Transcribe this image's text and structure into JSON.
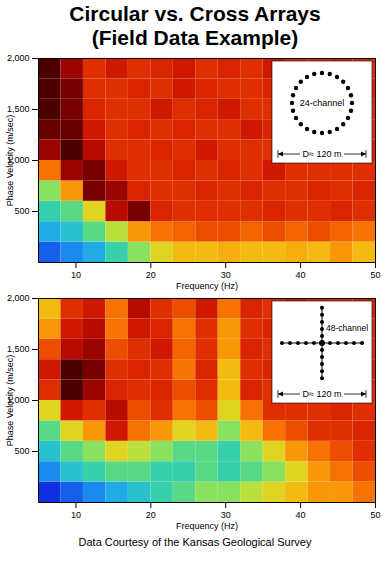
{
  "title": "Circular vs. Cross Arrays",
  "subtitle": "(Field Data Example)",
  "caption": "Data Courtesy of the Kansas Geological Survey",
  "chart_data": [
    {
      "type": "heatmap",
      "xlabel": "Frequency (Hz)",
      "ylabel": "Phase Velocity (m/sec)",
      "xlim": [
        5,
        50
      ],
      "ylim": [
        0,
        2000
      ],
      "xticks": [
        10,
        20,
        30,
        40,
        50
      ],
      "yticks": [
        500,
        1000,
        1500,
        2000
      ],
      "x_bins": [
        5,
        8,
        11,
        14,
        17,
        20,
        23,
        26,
        29,
        32,
        35,
        38,
        41,
        44,
        47,
        50
      ],
      "y_bins": [
        0,
        200,
        400,
        600,
        800,
        1000,
        1200,
        1400,
        1600,
        1800,
        2000
      ],
      "zlim": [
        0,
        1
      ],
      "cells": [
        [
          0.05,
          0.1,
          0.15,
          0.25,
          0.35,
          0.45,
          0.5,
          0.5,
          0.52,
          0.5,
          0.5,
          0.52,
          0.5,
          0.55,
          0.5
        ],
        [
          0.15,
          0.2,
          0.3,
          0.4,
          0.55,
          0.6,
          0.62,
          0.65,
          0.65,
          0.62,
          0.65,
          0.62,
          0.65,
          0.62,
          0.6
        ],
        [
          0.25,
          0.3,
          0.45,
          0.8,
          0.9,
          0.72,
          0.7,
          0.7,
          0.7,
          0.7,
          0.72,
          0.7,
          0.7,
          0.72,
          0.7
        ],
        [
          0.35,
          0.55,
          0.9,
          0.85,
          0.72,
          0.7,
          0.7,
          0.72,
          0.7,
          0.72,
          0.7,
          0.7,
          0.72,
          0.7,
          0.72
        ],
        [
          0.6,
          0.85,
          0.9,
          0.75,
          0.7,
          0.7,
          0.72,
          0.7,
          0.72,
          0.7,
          0.75,
          0.7,
          0.7,
          0.7,
          0.7
        ],
        [
          0.85,
          0.95,
          0.8,
          0.7,
          0.7,
          0.72,
          0.7,
          0.75,
          0.7,
          0.7,
          0.7,
          0.72,
          0.75,
          0.7,
          0.72
        ],
        [
          0.92,
          0.92,
          0.75,
          0.7,
          0.72,
          0.7,
          0.72,
          0.7,
          0.7,
          0.75,
          0.72,
          0.7,
          0.7,
          0.75,
          0.7
        ],
        [
          0.95,
          0.9,
          0.72,
          0.7,
          0.7,
          0.75,
          0.7,
          0.72,
          0.75,
          0.7,
          0.7,
          0.72,
          0.72,
          0.7,
          0.7
        ],
        [
          0.95,
          0.9,
          0.7,
          0.7,
          0.72,
          0.7,
          0.75,
          0.72,
          0.7,
          0.7,
          0.72,
          0.75,
          0.7,
          0.7,
          0.72
        ],
        [
          0.95,
          0.85,
          0.7,
          0.75,
          0.7,
          0.72,
          0.75,
          0.7,
          0.72,
          0.7,
          0.75,
          0.7,
          0.7,
          0.72,
          0.7
        ]
      ],
      "inset": {
        "label": "24-channel",
        "diameter_label": "D≈ 120 m",
        "marker": "circle"
      }
    },
    {
      "type": "heatmap",
      "xlabel": "Frequency (Hz)",
      "ylabel": "Phase Velocity (m/sec)",
      "xlim": [
        5,
        50
      ],
      "ylim": [
        0,
        2000
      ],
      "xticks": [
        10,
        20,
        30,
        40,
        50
      ],
      "yticks": [
        500,
        1000,
        1500,
        2000
      ],
      "x_bins": [
        5,
        8,
        11,
        14,
        17,
        20,
        23,
        26,
        29,
        32,
        35,
        38,
        41,
        44,
        47,
        50
      ],
      "y_bins": [
        0,
        200,
        400,
        600,
        800,
        1000,
        1200,
        1400,
        1600,
        1800,
        2000
      ],
      "zlim": [
        0,
        1
      ],
      "cells": [
        [
          0.0,
          0.05,
          0.1,
          0.15,
          0.2,
          0.25,
          0.3,
          0.35,
          0.35,
          0.4,
          0.45,
          0.5,
          0.55,
          0.55,
          0.6
        ],
        [
          0.1,
          0.2,
          0.25,
          0.3,
          0.3,
          0.25,
          0.25,
          0.3,
          0.25,
          0.3,
          0.35,
          0.45,
          0.55,
          0.6,
          0.65
        ],
        [
          0.2,
          0.3,
          0.35,
          0.45,
          0.4,
          0.35,
          0.3,
          0.3,
          0.25,
          0.35,
          0.45,
          0.55,
          0.6,
          0.65,
          0.7
        ],
        [
          0.3,
          0.45,
          0.55,
          0.75,
          0.6,
          0.55,
          0.45,
          0.5,
          0.35,
          0.5,
          0.6,
          0.65,
          0.7,
          0.7,
          0.72
        ],
        [
          0.45,
          0.75,
          0.7,
          0.8,
          0.65,
          0.7,
          0.6,
          0.65,
          0.45,
          0.6,
          0.7,
          0.7,
          0.7,
          0.72,
          0.7
        ],
        [
          0.7,
          0.95,
          0.85,
          0.72,
          0.7,
          0.72,
          0.65,
          0.7,
          0.5,
          0.72,
          0.7,
          0.72,
          0.72,
          0.7,
          0.7
        ],
        [
          0.75,
          0.95,
          0.9,
          0.7,
          0.72,
          0.7,
          0.6,
          0.72,
          0.5,
          0.7,
          0.72,
          0.7,
          0.7,
          0.7,
          0.72
        ],
        [
          0.65,
          0.8,
          0.85,
          0.65,
          0.7,
          0.75,
          0.62,
          0.7,
          0.55,
          0.72,
          0.7,
          0.72,
          0.7,
          0.75,
          0.7
        ],
        [
          0.55,
          0.75,
          0.8,
          0.6,
          0.75,
          0.72,
          0.6,
          0.7,
          0.55,
          0.7,
          0.72,
          0.7,
          0.75,
          0.7,
          0.7
        ],
        [
          0.5,
          0.7,
          0.75,
          0.6,
          0.8,
          0.7,
          0.65,
          0.75,
          0.6,
          0.72,
          0.7,
          0.75,
          0.72,
          0.7,
          0.72
        ]
      ],
      "inset": {
        "label": "48-channel",
        "diameter_label": "D≈ 120 m",
        "marker": "cross"
      }
    }
  ]
}
